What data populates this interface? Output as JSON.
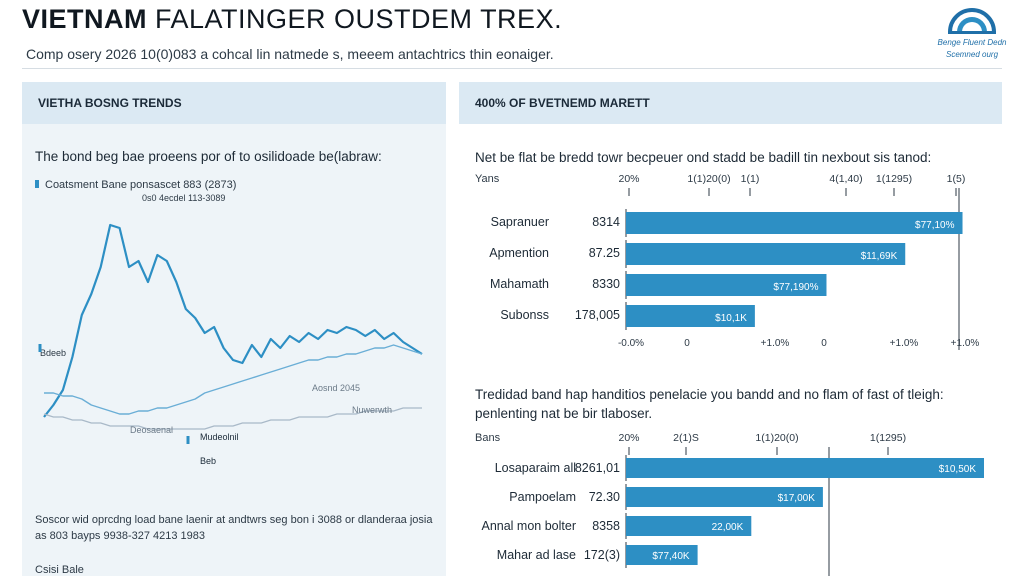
{
  "header": {
    "title_bold": "VIETNAM",
    "title_rest": "FALATINGER OUSTDEM TREX.",
    "subtitle": "Comp osery 2026 10(0)083 a cohcal lin natmede s, meeem antachtrics thin eonaiger.",
    "logo_line1": "Benge Fluent Dedn",
    "logo_line2": "Scemned ourg",
    "logo_icon": "dome-arc-icon"
  },
  "left_panel": {
    "heading": "VIETHA BOSNG TRENDS",
    "description": "The bond beg bae proeens por of to osilidoade be(labraw:",
    "legend_label": "Coatsment Bane ponsascet 883 (2873)",
    "source_note": "Soscor wid oprcdng load bane laenir at andtwrs seg bon i 3088 or dlanderaa josia as 803 bayps 9938-327 4213 1983",
    "footer": "Csisi Bale",
    "chart_data": {
      "type": "line",
      "title": "VIETHA BOSNG TRENDS",
      "x": [
        0,
        1,
        2,
        3,
        4,
        5,
        6,
        7,
        8,
        9,
        10,
        11,
        12,
        13,
        14,
        15,
        16,
        17,
        18,
        19,
        20,
        21,
        22,
        23,
        24,
        25,
        26,
        27,
        28,
        29,
        30,
        31,
        32,
        33,
        34,
        35,
        36,
        37,
        38,
        39,
        40
      ],
      "series": [
        {
          "name": "Coatsment Bane ponsascet 883 (2873)",
          "color": "#2d8fc4",
          "values": [
            10,
            14,
            19,
            30,
            44,
            51,
            60,
            74,
            73,
            60,
            62,
            55,
            64,
            62,
            55,
            46,
            43,
            38,
            40,
            33,
            29,
            28,
            34,
            30,
            36,
            33,
            37,
            35,
            38,
            36,
            39,
            38,
            40,
            39,
            37,
            39,
            36,
            38,
            35,
            33,
            31
          ]
        },
        {
          "name": "Bdeeb",
          "color": "#6aaed6",
          "values": [
            18,
            18,
            17,
            17,
            16,
            14,
            13,
            12,
            11,
            11,
            12,
            12,
            13,
            13,
            14,
            15,
            16,
            18,
            19,
            20,
            21,
            22,
            23,
            24,
            25,
            26,
            27,
            28,
            29,
            29,
            30,
            30,
            31,
            31,
            32,
            33,
            33,
            34,
            33,
            32,
            31
          ]
        },
        {
          "name": "Deosaenal",
          "color": "#a9b9c8",
          "values": [
            11,
            10,
            10,
            9,
            9,
            8,
            8,
            7,
            7,
            7,
            7,
            6,
            6,
            6,
            6,
            6,
            6,
            6,
            7,
            7,
            7,
            8,
            8,
            8,
            9,
            9,
            9,
            10,
            10,
            10,
            10,
            11,
            11,
            11,
            12,
            12,
            12,
            12,
            13,
            13,
            13
          ]
        }
      ],
      "annotations": [
        "0s0 4ecdel 113-3089",
        "Bdeeb",
        "Deosaenal",
        "Mudeolnil",
        "Aosnd 2045",
        "Nuwerwth",
        "Beb"
      ],
      "ylim": [
        0,
        80
      ]
    }
  },
  "right_panel": {
    "heading": "400% OF BVETNEMD MARETT",
    "chart1": {
      "description": "Net be flat be bredd towr becpeuer ond stadd be badill tin nexbout sis tanod:",
      "axis_caption": "Yans",
      "chart_data": {
        "type": "bar",
        "orientation": "horizontal",
        "top_ticks": [
          "20%",
          "1(1)20(0)",
          "1(1)",
          "4(1,40)",
          "1(1295)",
          "1(5)"
        ],
        "bottom_ticks": [
          "-0.0%",
          "0",
          "+1.0%",
          "0",
          "+1.0%",
          "+1.0%"
        ],
        "categories": [
          "Sapranuer",
          "Apmention",
          "Mahamath",
          "Subonss"
        ],
        "values_label": [
          "8314",
          "87.25",
          "8330",
          "178,005"
        ],
        "values": [
          94,
          78,
          56,
          36
        ],
        "bar_labels": [
          "$77,10%",
          "$11,69K",
          "$77,190%",
          "$10,1K"
        ],
        "xlim": [
          0,
          100
        ]
      }
    },
    "chart2": {
      "description": "Tredidad band hap handitios penelacie you bandd and no flam of fast of tleigh: penlenting nat be bir tlaboser.",
      "axis_caption": "Bans",
      "chart_data": {
        "type": "bar",
        "orientation": "horizontal",
        "top_ticks": [
          "20%",
          "2(1)S",
          "1(1)20(0)",
          "1(1295)"
        ],
        "categories": [
          "Losaparaim all",
          "Pampoelam",
          "Annal mon bolter",
          "Mahar ad lase"
        ],
        "values_label": [
          "8261,01",
          "72.30",
          "8358",
          "172(3)"
        ],
        "values": [
          100,
          55,
          35,
          20
        ],
        "bar_labels": [
          "$10,50K",
          "$17,00K",
          "22,00K",
          "$77,40K"
        ],
        "xlim": [
          0,
          100
        ]
      }
    }
  },
  "colors": {
    "bar": "#2d8fc4",
    "panel": "#eef4f8",
    "panel_head": "#dbe9f3",
    "line_main": "#2d8fc4"
  }
}
